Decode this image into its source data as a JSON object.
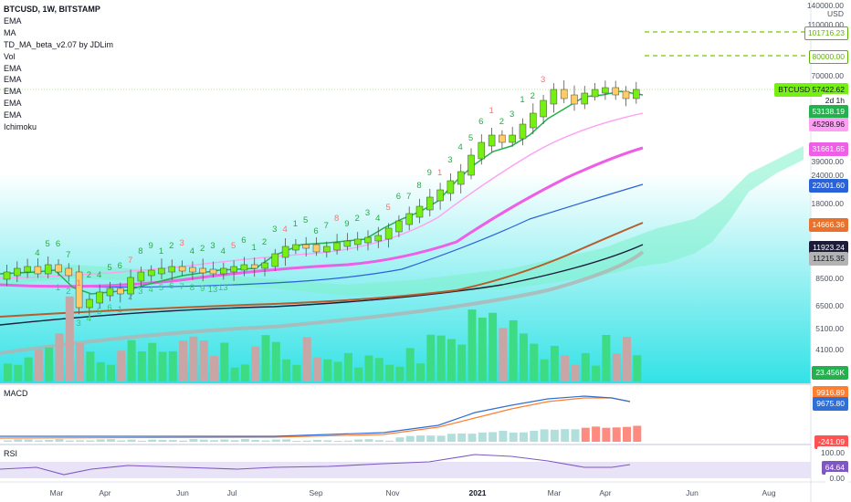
{
  "legend": {
    "symbol": "BTCUSD, 1W, BITSTAMP",
    "indicators": [
      "EMA",
      "MA",
      "TD_MA_beta_v2.07 by JDLim",
      "Vol",
      "EMA",
      "EMA",
      "EMA",
      "EMA",
      "EMA",
      "Ichimoku"
    ]
  },
  "macd": {
    "label": "MACD"
  },
  "rsi": {
    "label": "RSI"
  },
  "price_axis": {
    "currency": "USD",
    "ticks": [
      "140000.00",
      "110000.00",
      "70000.00",
      "39000.00",
      "24000.00",
      "18000.00",
      "8500.00",
      "6500.00",
      "5100.00",
      "4100.00"
    ]
  },
  "price_tags": [
    {
      "id": "tag-101716",
      "text": "101716.23",
      "bg": "#ffffff",
      "fg": "#5eb300",
      "border": "#5eb300"
    },
    {
      "id": "tag-80000",
      "text": "80000.00",
      "bg": "#ffffff",
      "fg": "#5eb300",
      "border": "#5eb300"
    },
    {
      "id": "tag-btcusd",
      "text": "BTCUSD  57422.62",
      "bg": "#76f012",
      "fg": "#131722",
      "border": "#76f012"
    },
    {
      "id": "tag-countdown",
      "text": "2d 1h",
      "bg": "#ffffff",
      "fg": "#131722",
      "border": "#ffffff"
    },
    {
      "id": "tag-53138",
      "text": "53138.19",
      "bg": "#22b14c",
      "fg": "#ffffff",
      "border": "#22b14c"
    },
    {
      "id": "tag-45298",
      "text": "45298.96",
      "bg": "#ff9ff3",
      "fg": "#131722",
      "border": "#ff9ff3"
    },
    {
      "id": "tag-31661",
      "text": "31661.65",
      "bg": "#ee5ee6",
      "fg": "#ffffff",
      "border": "#ee5ee6"
    },
    {
      "id": "tag-22001",
      "text": "22001.60",
      "bg": "#2962d9",
      "fg": "#ffffff",
      "border": "#2962d9"
    },
    {
      "id": "tag-14666",
      "text": "14666.36",
      "bg": "#e8722c",
      "fg": "#ffffff",
      "border": "#e8722c"
    },
    {
      "id": "tag-11923",
      "text": "11923.24",
      "bg": "#1c1c3a",
      "fg": "#ffffff",
      "border": "#1c1c3a"
    },
    {
      "id": "tag-11215",
      "text": "11215.35",
      "bg": "#b3b3b3",
      "fg": "#131722",
      "border": "#b3b3b3"
    },
    {
      "id": "tag-vol",
      "text": "23.456K",
      "bg": "#22b14c",
      "fg": "#ffffff",
      "border": "#22b14c"
    },
    {
      "id": "tag-macd1",
      "text": "9916.89",
      "bg": "#ff7f32",
      "fg": "#ffffff",
      "border": "#ff7f32"
    },
    {
      "id": "tag-macd2",
      "text": "9675.80",
      "bg": "#2f6fd6",
      "fg": "#ffffff",
      "border": "#2f6fd6"
    },
    {
      "id": "tag-macd3",
      "text": "-241.09",
      "bg": "#ff5252",
      "fg": "#ffffff",
      "border": "#ff5252"
    },
    {
      "id": "tag-rsi100",
      "text": "100.00",
      "bg": "#ffffff",
      "fg": "#4c525e",
      "border": "#ffffff"
    },
    {
      "id": "tag-rsi",
      "text": "64.64",
      "bg": "#7e57c2",
      "fg": "#ffffff",
      "border": "#7e57c2"
    },
    {
      "id": "tag-rsi0",
      "text": "0.00",
      "bg": "#ffffff",
      "fg": "#4c525e",
      "border": "#ffffff"
    }
  ],
  "time_axis": [
    "Mar",
    "Apr",
    "Jun",
    "Jul",
    "Sep",
    "Nov",
    "2021",
    "Mar",
    "Apr",
    "Jun",
    "Aug"
  ],
  "td_counts_top": [
    "4",
    "5",
    "6",
    "7",
    "1",
    "2",
    "4",
    "5",
    "6",
    "7",
    "8",
    "9",
    "1",
    "2",
    "3",
    "4",
    "2",
    "3",
    "4",
    "5",
    "6",
    "1",
    "2",
    "3",
    "4",
    "1",
    "5",
    "6",
    "7",
    "8",
    "9",
    "2",
    "3",
    "4",
    "5",
    "6",
    "7",
    "8",
    "9",
    "1",
    "3",
    "4",
    "5",
    "6",
    "1",
    "2",
    "3",
    "1",
    "2",
    "3"
  ],
  "td_counts_bottom": [
    "1",
    "2",
    "3",
    "4",
    "5",
    "6",
    "1",
    "2",
    "3",
    "4",
    "5",
    "6",
    "7",
    "8",
    "9",
    "13",
    "13"
  ],
  "colors": {
    "bull": "#76f012",
    "bear": "#ffcc66",
    "vol_up": "#3ddc84",
    "vol_down": "#c9a6a6",
    "ema_green": "#22b14c",
    "ema_pink_light": "#ff9ff3",
    "ema_magenta": "#ee5ee6",
    "ema_blue": "#2962d9",
    "ema_orange": "#b85c2c",
    "ema_dark": "#1c1c3a",
    "ma_gray": "#b3b3b3",
    "target_line": "#76c900",
    "macd_line": "#2f6fd6",
    "signal_line": "#ff7f32",
    "rsi_line": "#7e57c2",
    "bg_top": "#ffffff",
    "bg_bottom": "#2ee0e6"
  }
}
